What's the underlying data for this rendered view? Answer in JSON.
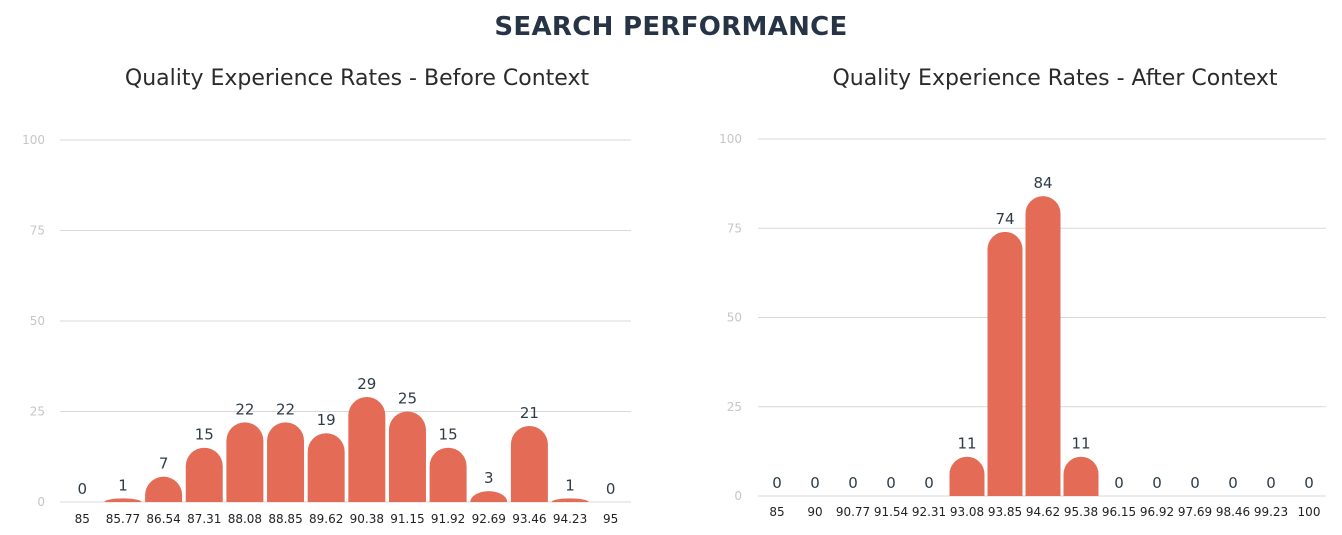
{
  "page": {
    "title": "SEARCH PERFORMANCE"
  },
  "colors": {
    "bar": "#e46c56",
    "title": "#263445",
    "grid": "#d9d9d9"
  },
  "chart_data": [
    {
      "type": "bar",
      "title": "Quality Experience Rates - Before Context",
      "categories": [
        "85",
        "85.77",
        "86.54",
        "87.31",
        "88.08",
        "88.85",
        "89.62",
        "90.38",
        "91.15",
        "91.92",
        "92.69",
        "93.46",
        "94.23",
        "95"
      ],
      "values": [
        0,
        1,
        7,
        15,
        22,
        22,
        19,
        29,
        25,
        15,
        3,
        21,
        1,
        0
      ],
      "yticks": [
        "0",
        "25",
        "50",
        "75",
        "100"
      ],
      "ylim": [
        0,
        100
      ],
      "xlabel": "",
      "ylabel": "",
      "grid": true
    },
    {
      "type": "bar",
      "title": "Quality Experience Rates - After Context",
      "categories": [
        "85",
        "90",
        "90.77",
        "91.54",
        "92.31",
        "93.08",
        "93.85",
        "94.62",
        "95.38",
        "96.15",
        "96.92",
        "97.69",
        "98.46",
        "99.23",
        "100"
      ],
      "values": [
        0,
        0,
        0,
        0,
        0,
        11,
        74,
        84,
        11,
        0,
        0,
        0,
        0,
        0,
        0
      ],
      "yticks": [
        "0",
        "25",
        "50",
        "75",
        "100"
      ],
      "ylim": [
        0,
        100
      ],
      "xlabel": "",
      "ylabel": "",
      "grid": true
    }
  ]
}
